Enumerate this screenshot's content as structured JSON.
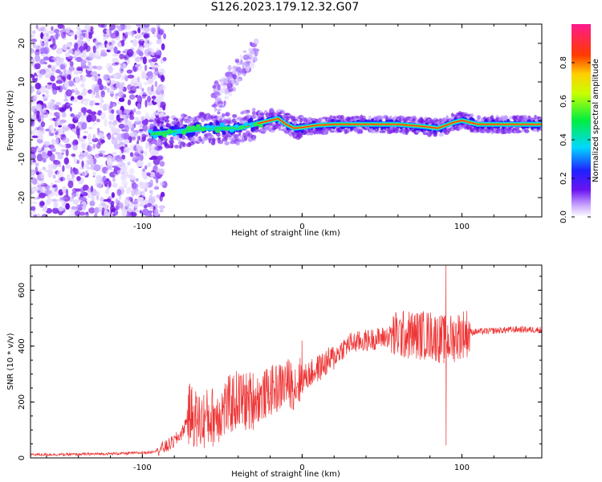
{
  "title": "S126.2023.179.12.32.G07",
  "colors": {
    "snr_line": "#ee3333",
    "spectrum_band": "#3a0cf0",
    "noise_purple": "#7a1fe6",
    "axis": "#000000"
  },
  "chart_data": [
    {
      "type": "heatmap",
      "xlabel": "Height of straight line (km)",
      "ylabel": "Frequency (Hz)",
      "xlim": [
        -170,
        150
      ],
      "ylim": [
        -25,
        25
      ],
      "xticks": [
        -100,
        0,
        100
      ],
      "yticks": [
        -20,
        -10,
        0,
        10,
        20
      ],
      "grid": false,
      "colorbar": {
        "label": "Normalized spectral amplitude",
        "range": [
          0,
          1
        ],
        "ticks": [
          "0.0",
          "0.2",
          "0.4",
          "0.6",
          "0.8"
        ],
        "colormap": "rainbow (white-purple-blue-cyan-green-yellow-red-magenta)"
      },
      "features": [
        {
          "description": "broadband noise",
          "x_range": [
            -170,
            -92
          ],
          "freq_range": [
            -25,
            25
          ]
        },
        {
          "description": "main frequency band",
          "x_range": [
            -95,
            150
          ],
          "freq_center": [
            -3,
            1
          ]
        },
        {
          "description": "diagonal branch",
          "x_range": [
            -55,
            -30
          ],
          "freq_range": [
            5,
            18
          ]
        }
      ],
      "band_centerline": {
        "x": [
          -95,
          -80,
          -60,
          -40,
          -30,
          -20,
          -15,
          -10,
          -5,
          0,
          10,
          20,
          40,
          60,
          75,
          85,
          95,
          100,
          110,
          130,
          150
        ],
        "freq": [
          -3.5,
          -3,
          -2,
          -2,
          -1,
          0,
          0.5,
          -1,
          -2,
          -1.8,
          -1.2,
          -1,
          -1,
          -1,
          -1.5,
          -2,
          -0.5,
          0,
          -1,
          -1,
          -1
        ]
      }
    },
    {
      "type": "line",
      "xlabel": "Height of straight line (km)",
      "ylabel": "SNR (10 * v/v)",
      "xlim": [
        -170,
        150
      ],
      "ylim": [
        0,
        690
      ],
      "xticks": [
        -100,
        0,
        100
      ],
      "yticks": [
        0,
        200,
        400,
        600
      ],
      "grid": false,
      "series": [
        {
          "color": "#ee3333",
          "x": [
            -170,
            -150,
            -130,
            -110,
            -95,
            -85,
            -80,
            -75,
            -72,
            -70,
            -65,
            -60,
            -55,
            -50,
            -45,
            -40,
            -35,
            -30,
            -25,
            -20,
            -15,
            -10,
            -5,
            0,
            5,
            10,
            15,
            20,
            25,
            30,
            40,
            50,
            60,
            70,
            80,
            85,
            90,
            95,
            100,
            105,
            120,
            135,
            150
          ],
          "y": [
            12,
            12,
            14,
            16,
            20,
            40,
            60,
            90,
            140,
            160,
            130,
            140,
            150,
            170,
            190,
            210,
            200,
            210,
            220,
            240,
            250,
            270,
            260,
            280,
            300,
            320,
            340,
            360,
            390,
            410,
            420,
            430,
            440,
            440,
            440,
            430,
            420,
            430,
            445,
            450,
            455,
            460,
            458
          ]
        }
      ],
      "notable": [
        {
          "x": 90,
          "y_max": 690,
          "y_min": 45,
          "description": "spike"
        },
        {
          "x": 0,
          "y_max": 420,
          "description": "spike"
        }
      ]
    }
  ]
}
